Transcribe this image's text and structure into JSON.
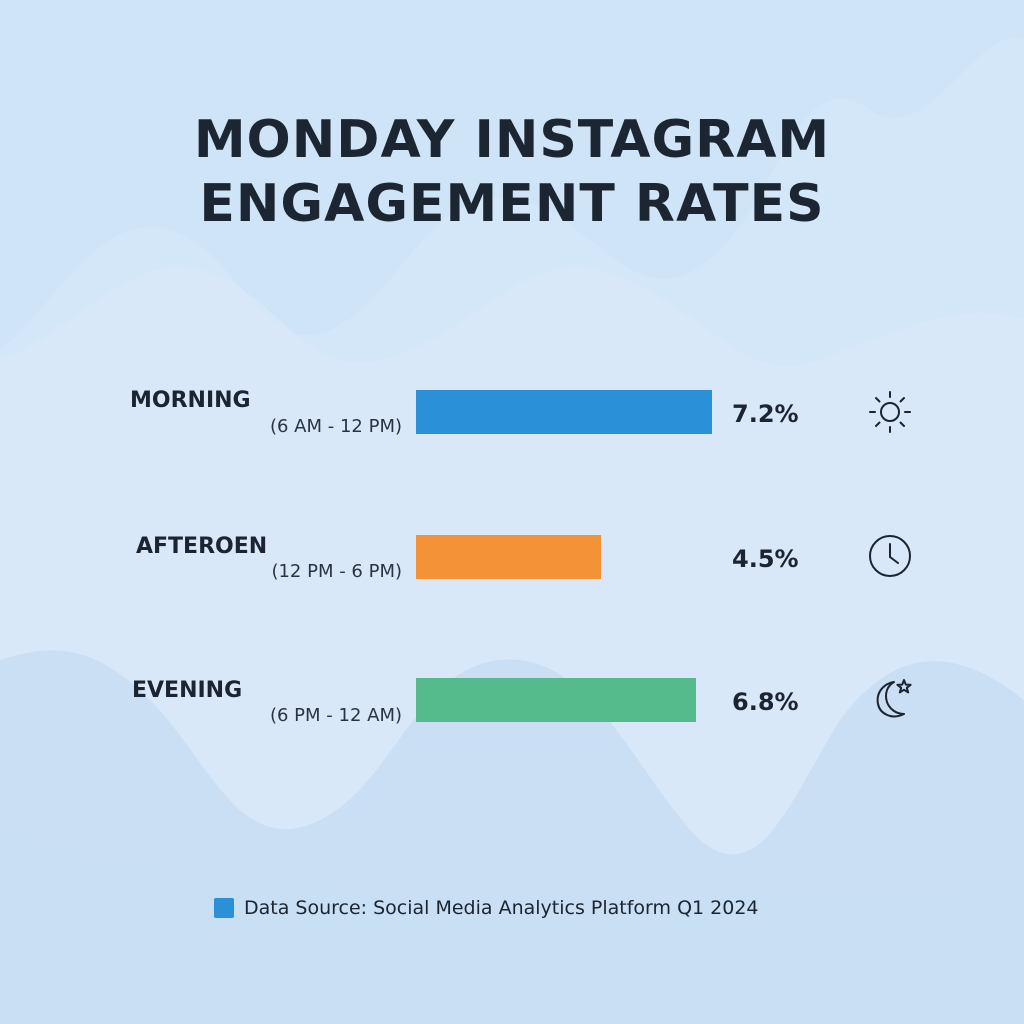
{
  "chart_data": {
    "type": "bar",
    "orientation": "horizontal",
    "title": "MONDAY INSTAGRAM ENGAGEMENT RATES",
    "title_lines": [
      "MONDAY INSTAGRAM",
      "ENGAGEMENT RATES"
    ],
    "categories": [
      "MORNING",
      "AFTEROEN",
      "EVENING"
    ],
    "sublabels": [
      "(6 AM - 12 PM)",
      "(12 PM - 6 PM)",
      "(6 PM - 12 AM)"
    ],
    "values": [
      7.2,
      4.5,
      6.8
    ],
    "value_labels": [
      "7.2%",
      "4.5%",
      "6.8%"
    ],
    "colors": [
      "#2a90d8",
      "#f39237",
      "#56bb8c"
    ],
    "icons": [
      "sun-icon",
      "clock-icon",
      "moon-star-icon"
    ],
    "grid": false,
    "source": "Data Source: Social Media Analytics Platform Q1 2024",
    "source_color": "#2a90d8"
  }
}
